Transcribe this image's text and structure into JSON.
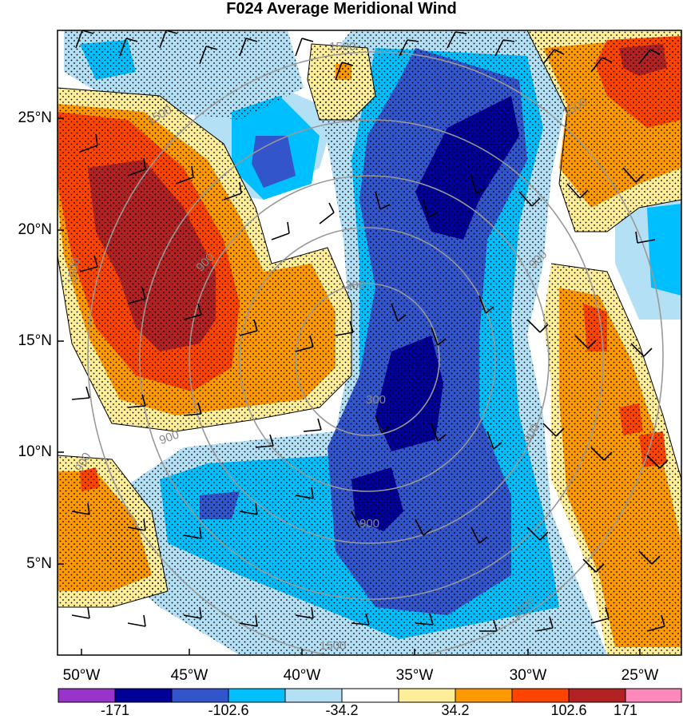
{
  "title": "F024 Average Meridional Wind",
  "lat_labels": [
    "25°N",
    "20°N",
    "15°N",
    "10°N",
    "5°N"
  ],
  "lon_labels": [
    "50°W",
    "45°W",
    "40°W",
    "35°W",
    "30°W",
    "25°W"
  ],
  "colorbar": {
    "colors": [
      "#9933cc",
      "#000099",
      "#3355cc",
      "#00bfff",
      "#b3e0f5",
      "#ffffff",
      "#ffee99",
      "#ff9900",
      "#ff4400",
      "#b22222",
      "#ff88bb"
    ],
    "labels": [
      "-171",
      "-102.6",
      "-34.2",
      "34.2",
      "102.6",
      "171"
    ]
  },
  "contour_labels": [
    "1500",
    "1500",
    "1500",
    "1500",
    "1500",
    "1500",
    "900",
    "900",
    "900",
    "900",
    "900",
    "900",
    "300",
    "300"
  ]
}
